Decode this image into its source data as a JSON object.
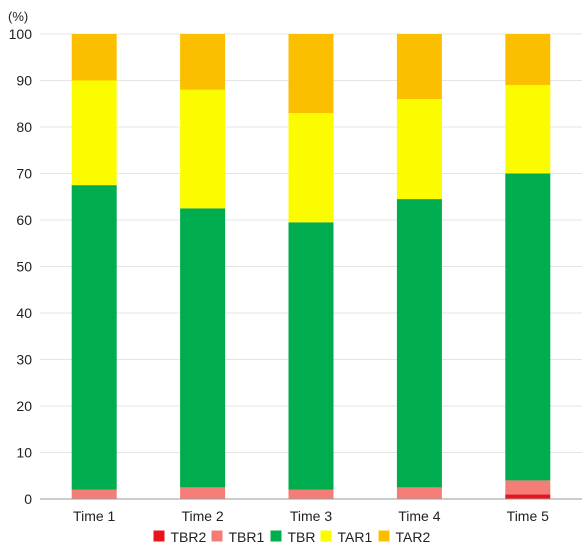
{
  "chart_data": {
    "type": "bar",
    "stacked": true,
    "y_unit_label": "(%)",
    "categories": [
      "Time 1",
      "Time 2",
      "Time 3",
      "Time 4",
      "Time 5"
    ],
    "ylim": [
      0,
      100
    ],
    "yticks": [
      0,
      10,
      20,
      30,
      40,
      50,
      60,
      70,
      80,
      90,
      100
    ],
    "grid": true,
    "legend_position": "bottom",
    "series": [
      {
        "name": "TBR2",
        "color": "#e8141a",
        "values": [
          0,
          0,
          0,
          0,
          1
        ]
      },
      {
        "name": "TBR1",
        "color": "#f47d78",
        "values": [
          2,
          2.5,
          2,
          2.5,
          3
        ]
      },
      {
        "name": "TBR",
        "color": "#00ad4e",
        "values": [
          65.5,
          60,
          57.5,
          62,
          66
        ]
      },
      {
        "name": "TAR1",
        "color": "#fcfc00",
        "values": [
          22.5,
          25.5,
          23.5,
          21.5,
          19
        ]
      },
      {
        "name": "TAR2",
        "color": "#fbbf00",
        "values": [
          10,
          12,
          17,
          14,
          11
        ]
      }
    ]
  }
}
